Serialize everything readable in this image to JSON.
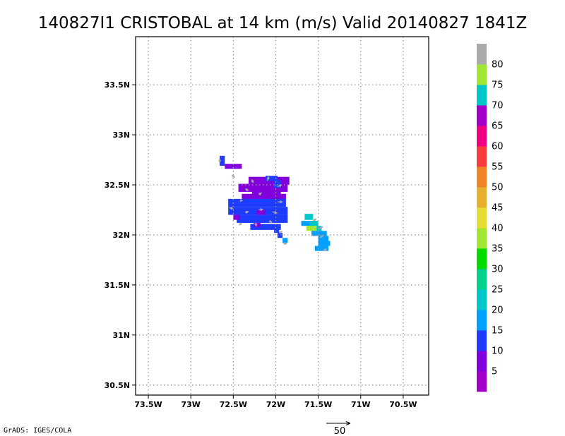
{
  "chart_data": {
    "type": "heatmap",
    "title": "140827I1 CRISTOBAL at 14 km (m/s) Valid 20140827 1841Z",
    "x_axis": {
      "range": [
        -73.65,
        -70.2
      ],
      "ticks": [
        -73.5,
        -73.0,
        -72.5,
        -72.0,
        -71.5,
        -71.0,
        -70.5
      ],
      "tick_labels": [
        "73.5W",
        "73W",
        "72.5W",
        "72W",
        "71.5W",
        "71W",
        "70.5W"
      ],
      "grid": "dotted"
    },
    "y_axis": {
      "range": [
        30.4,
        33.98
      ],
      "ticks": [
        30.5,
        31.0,
        31.5,
        32.0,
        32.5,
        33.0,
        33.5
      ],
      "tick_labels": [
        "30.5N",
        "31N",
        "31.5N",
        "32N",
        "32.5N",
        "33N",
        "33.5N"
      ],
      "grid": "dotted"
    },
    "colorbar": {
      "labels": [
        "5",
        "10",
        "15",
        "20",
        "25",
        "30",
        "35",
        "40",
        "45",
        "50",
        "55",
        "60",
        "65",
        "70",
        "75",
        "80"
      ],
      "colors": [
        "#a000c8",
        "#8200dc",
        "#1e3cff",
        "#00a0ff",
        "#00c8c8",
        "#00d28c",
        "#00dc00",
        "#a0e632",
        "#e6dc32",
        "#e6af2d",
        "#f08228",
        "#fa3c3c",
        "#f00082",
        "#a000c8",
        "#00c8c8",
        "#a0e632",
        "#aaaaaa"
      ]
    },
    "cells": [
      {
        "lon": -72.66,
        "lat": 32.74,
        "w": 0.06,
        "h": 0.05,
        "color": "#1e3cff"
      },
      {
        "lon": -72.66,
        "lat": 32.69,
        "w": 0.06,
        "h": 0.05,
        "color": "#1e3cff"
      },
      {
        "lon": -72.6,
        "lat": 32.66,
        "w": 0.14,
        "h": 0.05,
        "color": "#8200dc"
      },
      {
        "lon": -72.46,
        "lat": 32.66,
        "w": 0.06,
        "h": 0.05,
        "color": "#8200dc"
      },
      {
        "lon": -72.32,
        "lat": 32.5,
        "w": 0.48,
        "h": 0.08,
        "color": "#8200dc"
      },
      {
        "lon": -72.44,
        "lat": 32.43,
        "w": 0.58,
        "h": 0.08,
        "color": "#8200dc"
      },
      {
        "lon": -72.28,
        "lat": 32.38,
        "w": 0.34,
        "h": 0.07,
        "color": "#8200dc"
      },
      {
        "lon": -72.4,
        "lat": 32.34,
        "w": 0.52,
        "h": 0.07,
        "color": "#8200dc"
      },
      {
        "lon": -72.12,
        "lat": 32.54,
        "w": 0.14,
        "h": 0.05,
        "color": "#1e3cff"
      },
      {
        "lon": -72.02,
        "lat": 32.47,
        "w": 0.08,
        "h": 0.08,
        "color": "#1e3cff"
      },
      {
        "lon": -72.56,
        "lat": 32.28,
        "w": 0.68,
        "h": 0.08,
        "color": "#1e3cff"
      },
      {
        "lon": -72.56,
        "lat": 32.2,
        "w": 0.7,
        "h": 0.08,
        "color": "#1e3cff"
      },
      {
        "lon": -72.46,
        "lat": 32.12,
        "w": 0.6,
        "h": 0.08,
        "color": "#1e3cff"
      },
      {
        "lon": -72.3,
        "lat": 32.05,
        "w": 0.36,
        "h": 0.06,
        "color": "#1e3cff"
      },
      {
        "lon": -72.22,
        "lat": 32.2,
        "w": 0.1,
        "h": 0.05,
        "color": "#8200dc"
      },
      {
        "lon": -72.5,
        "lat": 32.15,
        "w": 0.08,
        "h": 0.05,
        "color": "#8200dc"
      },
      {
        "lon": -72.26,
        "lat": 32.08,
        "w": 0.08,
        "h": 0.04,
        "color": "#8200dc"
      },
      {
        "lon": -72.02,
        "lat": 32.02,
        "w": 0.06,
        "h": 0.05,
        "color": "#1e3cff"
      },
      {
        "lon": -71.98,
        "lat": 31.97,
        "w": 0.06,
        "h": 0.05,
        "color": "#1e3cff"
      },
      {
        "lon": -71.92,
        "lat": 31.92,
        "w": 0.06,
        "h": 0.05,
        "color": "#00a0ff"
      },
      {
        "lon": -71.66,
        "lat": 32.15,
        "w": 0.1,
        "h": 0.06,
        "color": "#00c8c8"
      },
      {
        "lon": -71.7,
        "lat": 32.09,
        "w": 0.16,
        "h": 0.05,
        "color": "#00a0ff"
      },
      {
        "lon": -71.6,
        "lat": 32.09,
        "w": 0.1,
        "h": 0.05,
        "color": "#00c8c8"
      },
      {
        "lon": -71.64,
        "lat": 32.04,
        "w": 0.12,
        "h": 0.05,
        "color": "#a0e632"
      },
      {
        "lon": -71.52,
        "lat": 32.04,
        "w": 0.06,
        "h": 0.05,
        "color": "#00c8c8"
      },
      {
        "lon": -71.58,
        "lat": 31.99,
        "w": 0.18,
        "h": 0.05,
        "color": "#00a0ff"
      },
      {
        "lon": -71.5,
        "lat": 31.94,
        "w": 0.12,
        "h": 0.05,
        "color": "#00a0ff"
      },
      {
        "lon": -71.5,
        "lat": 31.89,
        "w": 0.14,
        "h": 0.05,
        "color": "#00a0ff"
      },
      {
        "lon": -71.54,
        "lat": 31.84,
        "w": 0.16,
        "h": 0.05,
        "color": "#00a0ff"
      }
    ],
    "vectors": [
      {
        "lon": -72.66,
        "lat": 32.72,
        "u": 0,
        "v": 8
      },
      {
        "lon": -72.52,
        "lat": 32.6,
        "u": 6,
        "v": -5
      },
      {
        "lon": -72.26,
        "lat": 32.52,
        "u": -4,
        "v": 6
      },
      {
        "lon": -72.1,
        "lat": 32.54,
        "u": 3,
        "v": 8
      },
      {
        "lon": -71.98,
        "lat": 32.48,
        "u": 8,
        "v": 4
      },
      {
        "lon": -71.98,
        "lat": 32.33,
        "u": 10,
        "v": 0
      },
      {
        "lon": -72.32,
        "lat": 32.44,
        "u": -6,
        "v": 4
      },
      {
        "lon": -72.2,
        "lat": 32.4,
        "u": 5,
        "v": 4
      },
      {
        "lon": -72.4,
        "lat": 32.35,
        "u": -3,
        "v": -3
      },
      {
        "lon": -72.5,
        "lat": 32.26,
        "u": -7,
        "v": 2
      },
      {
        "lon": -72.36,
        "lat": 32.22,
        "u": 6,
        "v": 3
      },
      {
        "lon": -72.2,
        "lat": 32.25,
        "u": 8,
        "v": 1
      },
      {
        "lon": -72.04,
        "lat": 32.23,
        "u": 9,
        "v": -2
      },
      {
        "lon": -72.4,
        "lat": 32.12,
        "u": -5,
        "v": -4
      },
      {
        "lon": -72.24,
        "lat": 32.12,
        "u": 2,
        "v": -6
      },
      {
        "lon": -72.08,
        "lat": 32.14,
        "u": 6,
        "v": -3
      },
      {
        "lon": -71.96,
        "lat": 32.02,
        "u": 6,
        "v": 3
      },
      {
        "lon": -71.92,
        "lat": 31.92,
        "u": 8,
        "v": -2
      },
      {
        "lon": -71.56,
        "lat": 32.14,
        "u": 6,
        "v": 4
      },
      {
        "lon": -71.5,
        "lat": 32.06,
        "u": 9,
        "v": 4
      },
      {
        "lon": -71.48,
        "lat": 31.97,
        "u": 6,
        "v": 5
      },
      {
        "lon": -71.44,
        "lat": 31.84,
        "u": 6,
        "v": 4
      }
    ],
    "reference_vector": {
      "label": "50"
    }
  },
  "credit": "GrADS: IGES/COLA"
}
